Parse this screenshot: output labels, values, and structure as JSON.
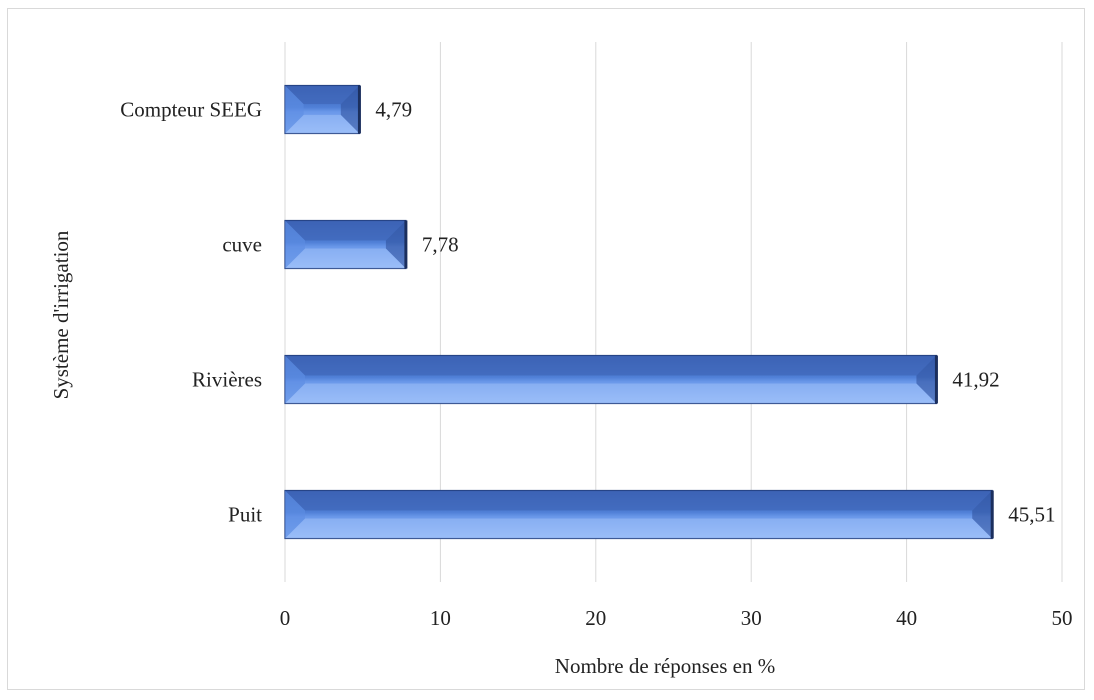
{
  "chart_data": {
    "type": "bar",
    "orientation": "horizontal",
    "categories": [
      "Compteur SEEG",
      "cuve",
      "Rivières",
      "Puit"
    ],
    "values": [
      4.79,
      7.78,
      41.92,
      45.51
    ],
    "value_labels": [
      "4,79",
      "7,78",
      "41,92",
      "45,51"
    ],
    "xlabel": "Nombre de réponses en %",
    "ylabel": "Système d'irrigation",
    "xlim": [
      0,
      50
    ],
    "xticks": [
      0,
      10,
      20,
      30,
      40,
      50
    ],
    "grid": "vertical",
    "bar_color": "#4a78cf",
    "bar_edge_color": "#1f3a78"
  }
}
